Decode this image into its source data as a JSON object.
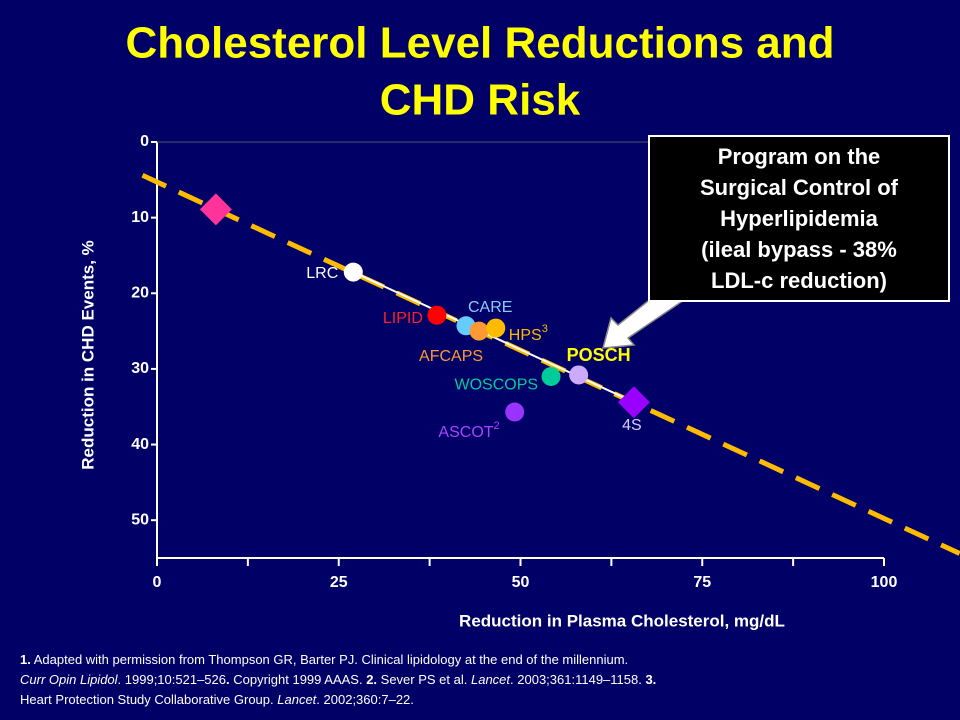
{
  "chart_data": {
    "type": "scatter",
    "title_lines": [
      "Cholesterol Level Reductions and",
      "CHD Risk"
    ],
    "x_label": "Reduction in Plasma Cholesterol, mg/dL",
    "y_label": "Reduction in CHD Events, %",
    "xlim": [
      0,
      100
    ],
    "ylim": [
      0,
      55
    ],
    "y_inverted": true,
    "xticks": [
      0,
      25,
      50,
      75,
      100
    ],
    "xminorticks": [
      12.5,
      37.5,
      62.5,
      87.5
    ],
    "yticks": [
      0,
      10,
      20,
      30,
      40,
      50
    ],
    "points": [
      {
        "x": 8.1,
        "y": 8.9,
        "color": "#ff3399",
        "marker": "diamond"
      },
      {
        "name": "LRC",
        "x": 27,
        "y": 17.2,
        "color": "#ffffff",
        "marker": "circle",
        "label_color": "#ffffff"
      },
      {
        "name": "LIPID",
        "x": 38.5,
        "y": 22.9,
        "color": "#ff0000",
        "marker": "circle",
        "label_color": "#ff2020"
      },
      {
        "name": "CARE",
        "x": 42.5,
        "y": 24.3,
        "color": "#66ccff",
        "marker": "circle",
        "label_color": "#88ccff"
      },
      {
        "name": "AFCAPS",
        "x": 44.3,
        "y": 25,
        "color": "#ff9933",
        "marker": "circle",
        "label_color": "#ff9933"
      },
      {
        "name": "HPS",
        "sup": "3",
        "x": 46.6,
        "y": 24.6,
        "color": "#ffbb00",
        "marker": "circle",
        "label_color": "#ffbb00"
      },
      {
        "name": "WOSCOPS",
        "x": 54.2,
        "y": 31,
        "color": "#00cc99",
        "marker": "circle",
        "label_color": "#00cc99"
      },
      {
        "name": "POSCH",
        "x": 58,
        "y": 30.8,
        "color": "#ccaaff",
        "marker": "circle",
        "label_color": "#ffff00"
      },
      {
        "name": "ASCOT",
        "sup": "2",
        "x": 49.2,
        "y": 35.7,
        "color": "#9933ff",
        "marker": "circle",
        "label_color": "#aa44ff"
      },
      {
        "name": "4S",
        "x": 65.6,
        "y": 34.4,
        "color": "#9900ff",
        "marker": "diamond",
        "label_color": "#ddccff"
      }
    ],
    "trend_line": {
      "x": [
        -2,
        110.4
      ],
      "y": [
        4.4,
        54.4
      ],
      "color": "#ffbb00"
    },
    "fit_line": {
      "x": [
        27,
        65.6
      ],
      "y": [
        17.2,
        34.4
      ],
      "color": "#ffffff"
    },
    "callout_lines": [
      "Program on the",
      "Surgical Control of",
      "Hyperlipidemia",
      "(ileal bypass - 38%",
      "LDL-c reduction)"
    ]
  },
  "footnote": {
    "lines": [
      [
        {
          "text": "1.",
          "bold": true
        },
        {
          "text": " Adapted with permission from Thompson GR, Barter PJ. Clinical lipidology at the end of the millennium."
        }
      ],
      [
        {
          "text": "Curr Opin Lipidol",
          "italic": true
        },
        {
          "text": ". 1999;10:521–526"
        },
        {
          "text": ".",
          "bold": true
        },
        {
          "text": " Copyright 1999 AAAS. "
        },
        {
          "text": "2.",
          "bold": true
        },
        {
          "text": " Sever PS et al. "
        },
        {
          "text": "Lancet",
          "italic": true
        },
        {
          "text": ". 2003;361:1149–1158. "
        },
        {
          "text": "3.",
          "bold": true
        }
      ],
      [
        {
          "text": "Heart Protection Study Collaborative Group. "
        },
        {
          "text": "Lancet",
          "italic": true
        },
        {
          "text": ". 2002;360:7–22."
        }
      ]
    ]
  }
}
